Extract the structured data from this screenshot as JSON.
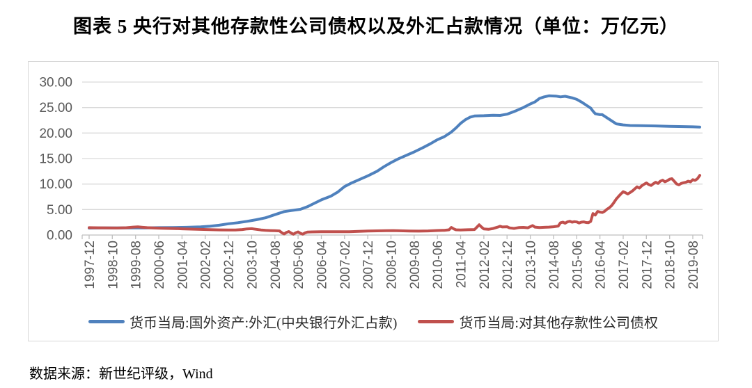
{
  "title": "图表 5  央行对其他存款性公司债权以及外汇占款情况（单位：万亿元）",
  "footer": {
    "source_label": "数据来源：新世纪评级，Wind"
  },
  "colors": {
    "blue": "#4F81BD",
    "red": "#C0504D",
    "grid": "#D9D9D9",
    "axis": "#BFBFBF",
    "tick_text": "#595959",
    "frame": "#D6D6D6"
  },
  "chart_data": {
    "type": "line",
    "title": "央行对其他存款性公司债权以及外汇占款情况",
    "unit": "万亿元",
    "xlabel": "",
    "ylabel": "",
    "grid": "horizontal",
    "legend_position": "bottom",
    "ylim": [
      0,
      30
    ],
    "y_ticks": [
      0,
      5,
      10,
      15,
      20,
      25,
      30
    ],
    "y_tick_labels": [
      "0.00",
      "5.00",
      "10.00",
      "15.00",
      "20.00",
      "25.00",
      "30.00"
    ],
    "x_axis_note": "monthly series; point index = months since 1997-12; one tick every 10 months",
    "x_tick_labels": [
      "1997-12",
      "1998-10",
      "1999-08",
      "2000-06",
      "2001-04",
      "2002-02",
      "2002-12",
      "2003-10",
      "2004-08",
      "2005-06",
      "2006-04",
      "2007-02",
      "2007-12",
      "2008-10",
      "2009-08",
      "2010-06",
      "2011-04",
      "2012-02",
      "2012-12",
      "2013-10",
      "2014-08",
      "2015-06",
      "2016-04",
      "2017-02",
      "2017-12",
      "2018-10",
      "2019-08"
    ],
    "series": [
      {
        "name": "货币当局:国外资产:外汇(中央银行外汇占款)",
        "color": "#4F81BD",
        "points": [
          [
            0,
            1.37
          ],
          [
            6,
            1.39
          ],
          [
            12,
            1.41
          ],
          [
            18,
            1.4
          ],
          [
            24,
            1.41
          ],
          [
            30,
            1.44
          ],
          [
            36,
            1.47
          ],
          [
            42,
            1.52
          ],
          [
            48,
            1.6
          ],
          [
            52,
            1.72
          ],
          [
            56,
            1.92
          ],
          [
            60,
            2.21
          ],
          [
            64,
            2.42
          ],
          [
            68,
            2.68
          ],
          [
            72,
            3.0
          ],
          [
            76,
            3.38
          ],
          [
            80,
            4.0
          ],
          [
            84,
            4.6
          ],
          [
            87,
            4.8
          ],
          [
            91,
            5.05
          ],
          [
            94,
            5.55
          ],
          [
            96,
            6.0
          ],
          [
            100,
            6.9
          ],
          [
            104,
            7.6
          ],
          [
            107,
            8.4
          ],
          [
            110,
            9.5
          ],
          [
            113,
            10.2
          ],
          [
            116,
            10.8
          ],
          [
            120,
            11.6
          ],
          [
            124,
            12.5
          ],
          [
            127,
            13.4
          ],
          [
            130,
            14.2
          ],
          [
            133,
            14.9
          ],
          [
            136,
            15.5
          ],
          [
            140,
            16.3
          ],
          [
            144,
            17.2
          ],
          [
            147,
            17.9
          ],
          [
            150,
            18.7
          ],
          [
            153,
            19.3
          ],
          [
            156,
            20.2
          ],
          [
            158,
            21.0
          ],
          [
            160,
            21.9
          ],
          [
            162,
            22.6
          ],
          [
            164,
            23.1
          ],
          [
            166,
            23.35
          ],
          [
            170,
            23.4
          ],
          [
            174,
            23.5
          ],
          [
            177,
            23.45
          ],
          [
            180,
            23.7
          ],
          [
            184,
            24.4
          ],
          [
            187,
            25.0
          ],
          [
            190,
            25.7
          ],
          [
            192,
            26.1
          ],
          [
            194,
            26.8
          ],
          [
            196,
            27.1
          ],
          [
            198,
            27.3
          ],
          [
            201,
            27.25
          ],
          [
            203,
            27.1
          ],
          [
            205,
            27.2
          ],
          [
            208,
            26.9
          ],
          [
            210,
            26.6
          ],
          [
            212,
            26.1
          ],
          [
            214,
            25.5
          ],
          [
            216,
            24.9
          ],
          [
            217,
            24.3
          ],
          [
            218,
            23.8
          ],
          [
            220,
            23.6
          ],
          [
            221,
            23.6
          ],
          [
            223,
            23.0
          ],
          [
            225,
            22.4
          ],
          [
            227,
            21.8
          ],
          [
            230,
            21.6
          ],
          [
            233,
            21.48
          ],
          [
            238,
            21.45
          ],
          [
            244,
            21.4
          ],
          [
            250,
            21.32
          ],
          [
            256,
            21.26
          ],
          [
            260,
            21.22
          ],
          [
            263,
            21.18
          ]
        ]
      },
      {
        "name": "货币当局:对其他存款性公司债权",
        "color": "#C0504D",
        "points": [
          [
            0,
            1.44
          ],
          [
            4,
            1.42
          ],
          [
            8,
            1.39
          ],
          [
            12,
            1.38
          ],
          [
            16,
            1.43
          ],
          [
            19,
            1.55
          ],
          [
            21,
            1.6
          ],
          [
            23,
            1.52
          ],
          [
            25,
            1.44
          ],
          [
            28,
            1.38
          ],
          [
            31,
            1.34
          ],
          [
            34,
            1.3
          ],
          [
            37,
            1.27
          ],
          [
            40,
            1.22
          ],
          [
            44,
            1.16
          ],
          [
            48,
            1.1
          ],
          [
            52,
            1.05
          ],
          [
            56,
            1.01
          ],
          [
            60,
            0.98
          ],
          [
            63,
            0.99
          ],
          [
            66,
            1.08
          ],
          [
            68,
            1.2
          ],
          [
            70,
            1.24
          ],
          [
            72,
            1.12
          ],
          [
            74,
            1.0
          ],
          [
            76,
            0.92
          ],
          [
            78,
            0.87
          ],
          [
            80,
            0.84
          ],
          [
            82,
            0.8
          ],
          [
            83,
            0.45
          ],
          [
            84,
            0.2
          ],
          [
            85,
            0.52
          ],
          [
            86,
            0.68
          ],
          [
            87,
            0.38
          ],
          [
            88,
            0.16
          ],
          [
            89,
            0.45
          ],
          [
            90,
            0.62
          ],
          [
            91,
            0.34
          ],
          [
            92,
            0.16
          ],
          [
            93,
            0.42
          ],
          [
            94,
            0.58
          ],
          [
            96,
            0.62
          ],
          [
            100,
            0.65
          ],
          [
            104,
            0.66
          ],
          [
            108,
            0.64
          ],
          [
            112,
            0.66
          ],
          [
            116,
            0.71
          ],
          [
            120,
            0.78
          ],
          [
            124,
            0.82
          ],
          [
            128,
            0.85
          ],
          [
            131,
            0.87
          ],
          [
            134,
            0.83
          ],
          [
            138,
            0.79
          ],
          [
            142,
            0.76
          ],
          [
            146,
            0.81
          ],
          [
            150,
            0.88
          ],
          [
            153,
            0.93
          ],
          [
            155,
            1.02
          ],
          [
            156,
            1.48
          ],
          [
            157,
            1.22
          ],
          [
            158,
            1.02
          ],
          [
            160,
            1.0
          ],
          [
            163,
            1.04
          ],
          [
            166,
            1.08
          ],
          [
            168,
            2.0
          ],
          [
            169,
            1.55
          ],
          [
            170,
            1.18
          ],
          [
            172,
            1.12
          ],
          [
            174,
            1.28
          ],
          [
            176,
            1.55
          ],
          [
            177,
            1.72
          ],
          [
            178,
            1.58
          ],
          [
            180,
            1.62
          ],
          [
            181,
            1.4
          ],
          [
            183,
            1.3
          ],
          [
            185,
            1.46
          ],
          [
            187,
            1.5
          ],
          [
            189,
            1.42
          ],
          [
            191,
            1.85
          ],
          [
            192,
            1.55
          ],
          [
            194,
            1.46
          ],
          [
            196,
            1.52
          ],
          [
            198,
            1.56
          ],
          [
            200,
            1.62
          ],
          [
            202,
            1.75
          ],
          [
            203,
            2.4
          ],
          [
            204,
            2.52
          ],
          [
            205,
            2.32
          ],
          [
            206,
            2.58
          ],
          [
            207,
            2.68
          ],
          [
            208,
            2.52
          ],
          [
            209,
            2.62
          ],
          [
            210,
            2.56
          ],
          [
            211,
            2.36
          ],
          [
            212,
            2.52
          ],
          [
            213,
            2.58
          ],
          [
            214,
            2.46
          ],
          [
            215,
            2.42
          ],
          [
            216,
            2.66
          ],
          [
            217,
            4.2
          ],
          [
            218,
            3.92
          ],
          [
            219,
            4.62
          ],
          [
            220,
            4.52
          ],
          [
            221,
            4.42
          ],
          [
            222,
            4.65
          ],
          [
            223,
            5.05
          ],
          [
            224,
            5.35
          ],
          [
            225,
            5.75
          ],
          [
            226,
            6.35
          ],
          [
            227,
            7.05
          ],
          [
            228,
            7.55
          ],
          [
            229,
            8.05
          ],
          [
            230,
            8.5
          ],
          [
            231,
            8.3
          ],
          [
            232,
            8.05
          ],
          [
            233,
            8.35
          ],
          [
            234,
            8.65
          ],
          [
            235,
            9.05
          ],
          [
            236,
            9.45
          ],
          [
            237,
            9.2
          ],
          [
            238,
            9.65
          ],
          [
            239,
            9.95
          ],
          [
            240,
            10.22
          ],
          [
            241,
            9.92
          ],
          [
            242,
            9.72
          ],
          [
            243,
            10.05
          ],
          [
            244,
            10.35
          ],
          [
            245,
            10.12
          ],
          [
            246,
            10.55
          ],
          [
            247,
            10.75
          ],
          [
            248,
            10.45
          ],
          [
            249,
            10.65
          ],
          [
            250,
            10.95
          ],
          [
            251,
            11.05
          ],
          [
            252,
            10.55
          ],
          [
            253,
            10.02
          ],
          [
            254,
            9.85
          ],
          [
            255,
            10.12
          ],
          [
            256,
            10.25
          ],
          [
            257,
            10.35
          ],
          [
            258,
            10.55
          ],
          [
            259,
            10.42
          ],
          [
            260,
            10.85
          ],
          [
            261,
            10.72
          ],
          [
            262,
            11.05
          ],
          [
            263,
            11.7
          ]
        ]
      }
    ]
  }
}
